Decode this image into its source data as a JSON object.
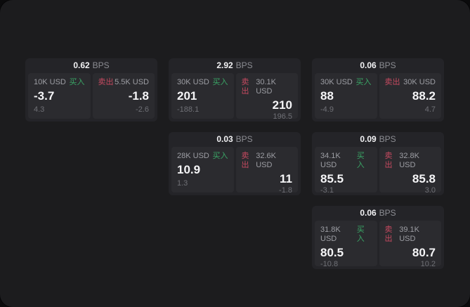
{
  "theme": {
    "page_bg": "#0b0b0c",
    "panel_bg": "#1c1c1e",
    "card_bg": "#242428",
    "subcard_bg": "#2b2b2f",
    "buy_color": "#3aa566",
    "sell_color": "#c54a60"
  },
  "labels": {
    "bps_unit": "BPS",
    "buy": "买入",
    "sell": "卖出"
  },
  "cards": [
    {
      "bps": "0.62",
      "buy": {
        "amount": "10K USD",
        "price": "-3.7",
        "delta": "4.3"
      },
      "sell": {
        "amount": "5.5K USD",
        "price": "-1.8",
        "delta": "-2.6"
      }
    },
    {
      "bps": "2.92",
      "buy": {
        "amount": "30K USD",
        "price": "201",
        "delta": "-188.1"
      },
      "sell": {
        "amount": "30.1K USD",
        "price": "210",
        "delta": "196.5"
      }
    },
    {
      "bps": "0.06",
      "buy": {
        "amount": "30K USD",
        "price": "88",
        "delta": "-4.9"
      },
      "sell": {
        "amount": "30K USD",
        "price": "88.2",
        "delta": "4.7"
      }
    },
    {
      "bps": "0.03",
      "buy": {
        "amount": "28K USD",
        "price": "10.9",
        "delta": "1.3"
      },
      "sell": {
        "amount": "32.6K USD",
        "price": "11",
        "delta": "-1.8"
      }
    },
    {
      "bps": "0.09",
      "buy": {
        "amount": "34.1K USD",
        "price": "85.5",
        "delta": "-3.1"
      },
      "sell": {
        "amount": "32.8K USD",
        "price": "85.8",
        "delta": "3.0"
      }
    },
    {
      "bps": "0.06",
      "buy": {
        "amount": "31.8K USD",
        "price": "80.5",
        "delta": "-10.8"
      },
      "sell": {
        "amount": "39.1K USD",
        "price": "80.7",
        "delta": "10.2"
      }
    }
  ]
}
